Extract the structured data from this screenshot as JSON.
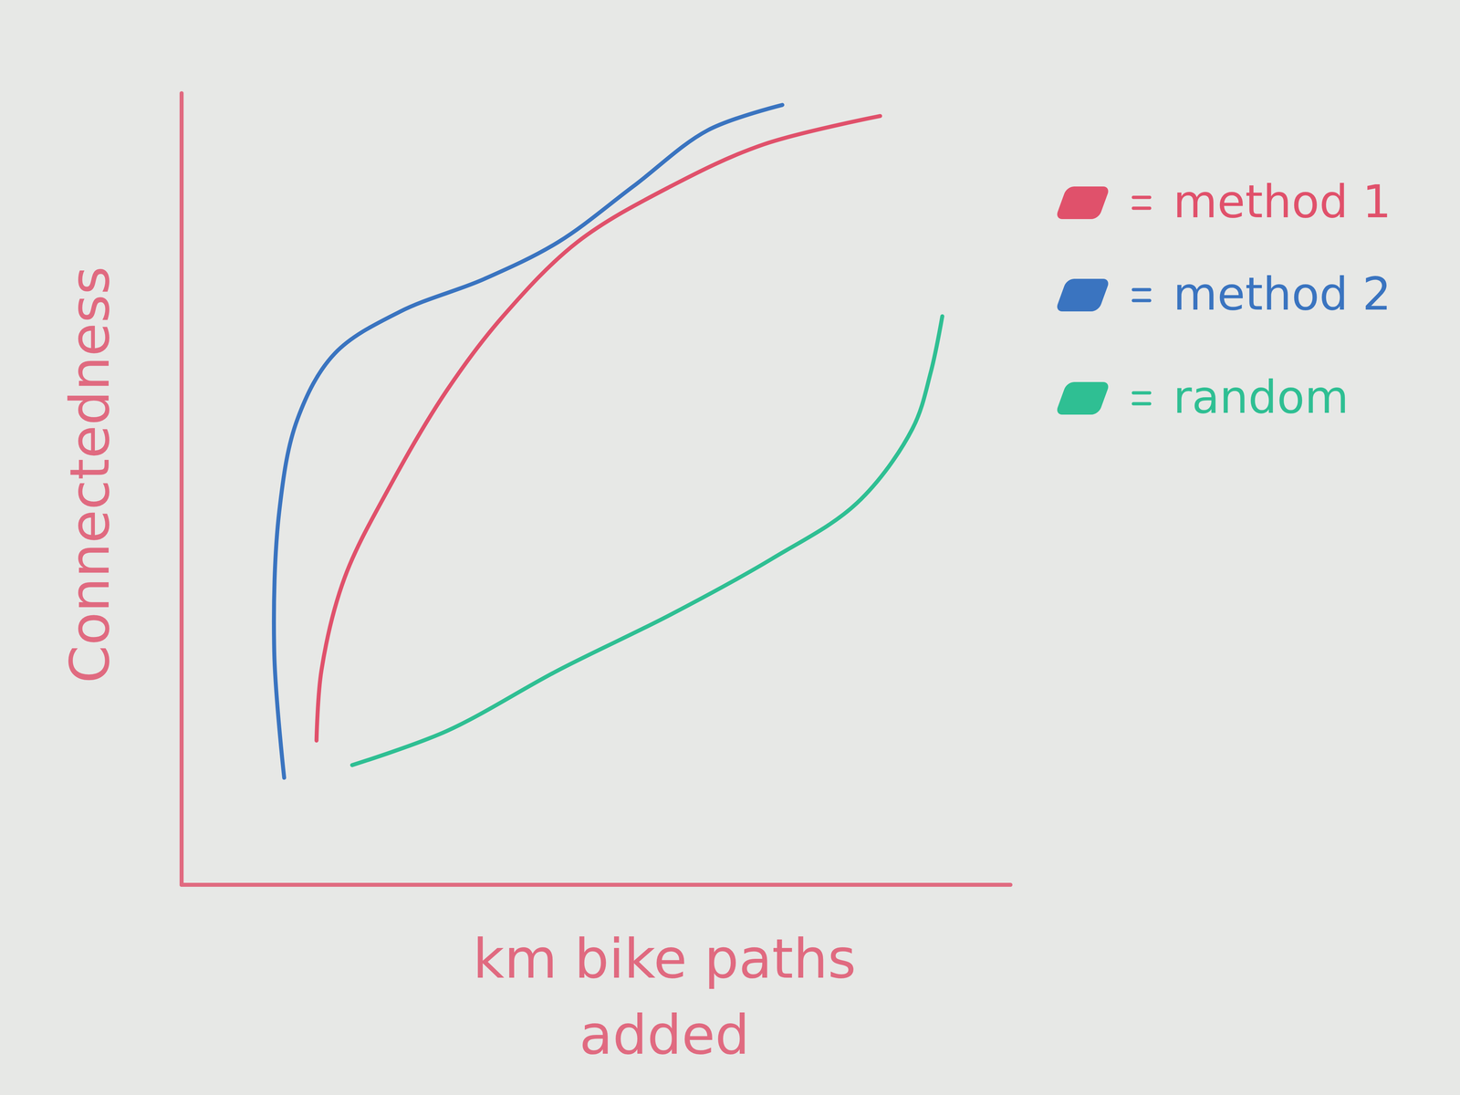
{
  "chart_data": {
    "type": "line",
    "xlabel": "km bike paths\nadded",
    "ylabel": "Connectedness",
    "xlim": [
      0,
      100
    ],
    "ylim": [
      0,
      100
    ],
    "tick_labels": false,
    "legend": "top-right",
    "series": [
      {
        "name": "method 1",
        "color": "#e0516b",
        "x": [
          16.3,
          16.9,
          19.7,
          25.3,
          32.0,
          38.8,
          47.8,
          59.0,
          70.2,
          84.3
        ],
        "values": [
          18.2,
          27.1,
          38.8,
          50.6,
          62.4,
          71.8,
          81.2,
          88.2,
          93.5,
          97.1
        ]
      },
      {
        "name": "method 2",
        "color": "#3a74c0",
        "x": [
          12.4,
          11.2,
          11.8,
          14.0,
          18.5,
          26.4,
          36.5,
          45.5,
          54.5,
          63.5,
          72.5
        ],
        "values": [
          13.5,
          29.4,
          47.1,
          58.8,
          67.1,
          72.4,
          76.5,
          81.2,
          88.2,
          95.3,
          98.5
        ]
      },
      {
        "name": "random",
        "color": "#2fbf93",
        "x": [
          20.6,
          32.0,
          45.5,
          59.0,
          71.3,
          81.5,
          88.2,
          90.4,
          91.8
        ],
        "values": [
          15.1,
          19.4,
          27.1,
          34.1,
          41.2,
          48.2,
          57.6,
          64.7,
          71.8
        ]
      }
    ]
  }
}
